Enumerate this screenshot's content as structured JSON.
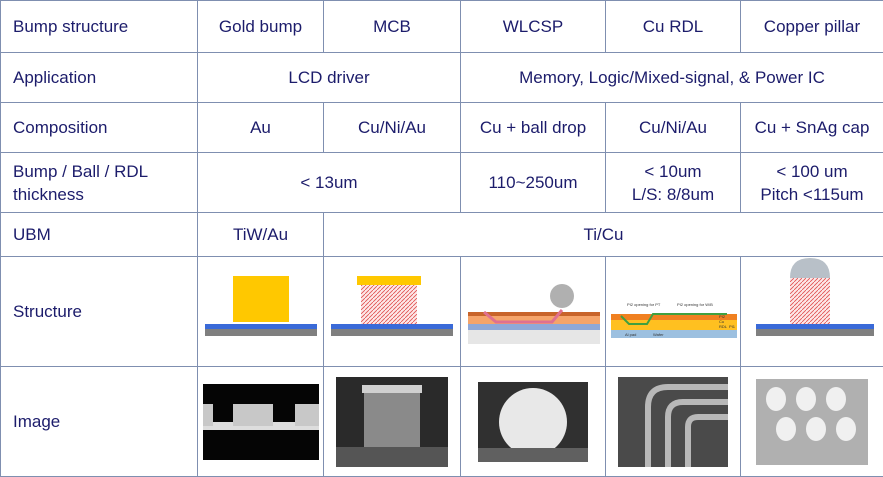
{
  "table": {
    "rows": [
      [
        "Bump structure",
        "Gold bump",
        "MCB",
        "WLCSP",
        "Cu RDL",
        "Copper pillar"
      ],
      [
        "Application",
        "LCD driver",
        "Memory, Logic/Mixed-signal, & Power IC"
      ],
      [
        "Composition",
        "Au",
        "Cu/Ni/Au",
        "Cu + ball drop",
        "Cu/Ni/Au",
        "Cu + SnAg cap"
      ],
      [
        [
          "Bump / Ball / RDL",
          "thickness"
        ],
        "< 13um",
        "110~250um",
        [
          "< 10um",
          "L/S: 8/8um"
        ],
        [
          "< 100 um",
          "Pitch <115um"
        ]
      ],
      [
        "UBM",
        "TiW/Au",
        "Ti/Cu"
      ],
      [
        "Structure"
      ],
      [
        "Image"
      ]
    ]
  },
  "structure_labels": [
    "PI2 opening for PT",
    "PI2 opening for W/B",
    "PI2",
    "Cu",
    "RDL",
    "PI1",
    "Al pad",
    "Wafer"
  ]
}
